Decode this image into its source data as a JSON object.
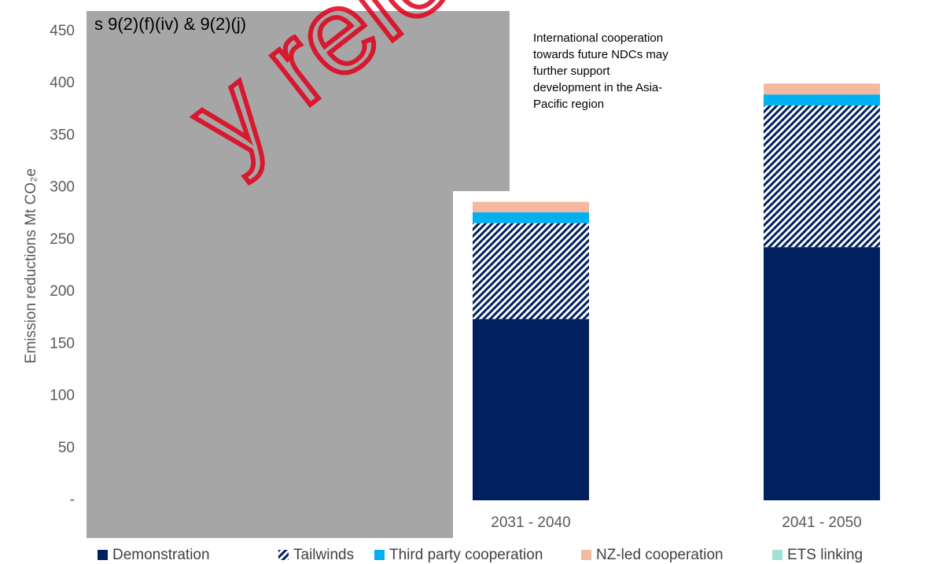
{
  "chart_data": {
    "type": "stacked_bar",
    "y_label": "Emission reductions Mt CO₂e",
    "redaction": "s 9(2)(f)(iv) & 9(2)(j)",
    "watermark": "y rele",
    "annotation": [
      "International cooperation",
      "towards future NDCs may",
      "further support",
      "development in the Asia-",
      "Pacific region"
    ],
    "categories": [
      null,
      "2031 - 2040",
      "2041  - 2050"
    ],
    "series": [
      {
        "name": "Demonstration",
        "color": "#002060",
        "values": [
          null,
          174,
          243
        ]
      },
      {
        "name": "Tailwinds",
        "color": "#002060",
        "pattern": "hatch",
        "values": [
          null,
          92,
          136
        ]
      },
      {
        "name": "Third party cooperation",
        "color": "#00b0f0",
        "values": [
          null,
          10.5,
          10.5
        ]
      },
      {
        "name": "NZ-led cooperation",
        "color": "#f4b9a0",
        "values": [
          null,
          10,
          10.5
        ]
      },
      {
        "name": "ETS linking",
        "color": "#a0e2d8",
        "values": [
          null,
          0,
          0
        ]
      }
    ],
    "ylim": [
      0,
      450
    ],
    "yticks": [
      {
        "value": 0,
        "label": "-"
      },
      50,
      100,
      150,
      200,
      250,
      300,
      350,
      400,
      450
    ],
    "legend": "bottom"
  }
}
